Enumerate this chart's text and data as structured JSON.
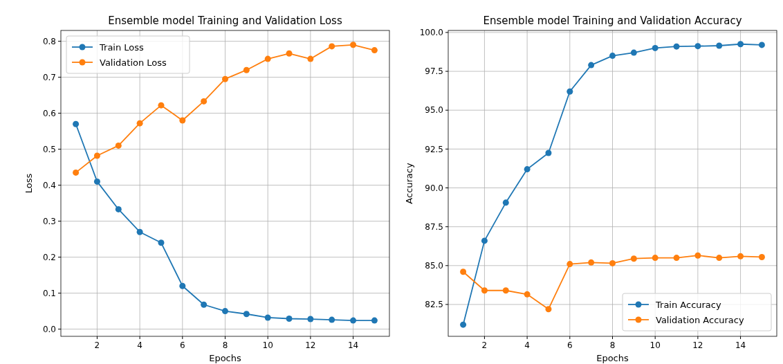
{
  "chart_data": [
    {
      "type": "line",
      "title": "Ensemble model Training and Validation Loss",
      "xlabel": "Epochs",
      "ylabel": "Loss",
      "x": [
        1,
        2,
        3,
        4,
        5,
        6,
        7,
        8,
        9,
        10,
        11,
        12,
        13,
        14,
        15
      ],
      "xlim": [
        0.3,
        15.7
      ],
      "xticks": [
        2,
        4,
        6,
        8,
        10,
        12,
        14
      ],
      "ylim": [
        -0.02,
        0.83
      ],
      "yticks": [
        {
          "value": 0,
          "label": "0.0"
        },
        0.1,
        0.2,
        0.3,
        0.4,
        0.5,
        0.6,
        0.7,
        0.8
      ],
      "grid": true,
      "legend": "top left",
      "marker": "circle",
      "series": [
        {
          "name": "Train Loss",
          "color": "#1f77b4",
          "values": [
            0.57,
            0.41,
            0.333,
            0.27,
            0.24,
            0.12,
            0.068,
            0.05,
            0.042,
            0.032,
            0.029,
            0.028,
            0.026,
            0.024,
            0.024
          ]
        },
        {
          "name": "Validation Loss",
          "color": "#ff7f0e",
          "values": [
            0.435,
            0.482,
            0.51,
            0.572,
            0.622,
            0.58,
            0.633,
            0.695,
            0.72,
            0.751,
            0.766,
            0.751,
            0.786,
            0.79,
            0.775
          ]
        }
      ]
    },
    {
      "type": "line",
      "title": "Ensemble model Training and Validation Accuracy",
      "xlabel": "Epochs",
      "ylabel": "Accuracy",
      "x": [
        1,
        2,
        3,
        4,
        5,
        6,
        7,
        8,
        9,
        10,
        11,
        12,
        13,
        14,
        15
      ],
      "xlim": [
        0.3,
        15.7
      ],
      "xticks": [
        2,
        4,
        6,
        8,
        10,
        12,
        14
      ],
      "ylim": [
        80.45,
        100.13
      ],
      "yticks": [
        82.5,
        {
          "value": 85,
          "label": "85.0"
        },
        87.5,
        {
          "value": 90,
          "label": "90.0"
        },
        92.5,
        {
          "value": 95,
          "label": "95.0"
        },
        97.5,
        {
          "value": 100,
          "label": "100.0"
        }
      ],
      "grid": true,
      "legend": "bottom right",
      "marker": "circle",
      "series": [
        {
          "name": "Train Accuracy",
          "color": "#1f77b4",
          "values": [
            81.2,
            86.6,
            89.05,
            91.2,
            92.25,
            96.2,
            97.9,
            98.5,
            98.7,
            99.0,
            99.1,
            99.12,
            99.15,
            99.25,
            99.2
          ]
        },
        {
          "name": "Validation Accuracy",
          "color": "#ff7f0e",
          "values": [
            84.6,
            83.4,
            83.4,
            83.15,
            82.2,
            85.1,
            85.2,
            85.15,
            85.45,
            85.5,
            85.5,
            85.65,
            85.5,
            85.6,
            85.55
          ]
        }
      ]
    }
  ]
}
